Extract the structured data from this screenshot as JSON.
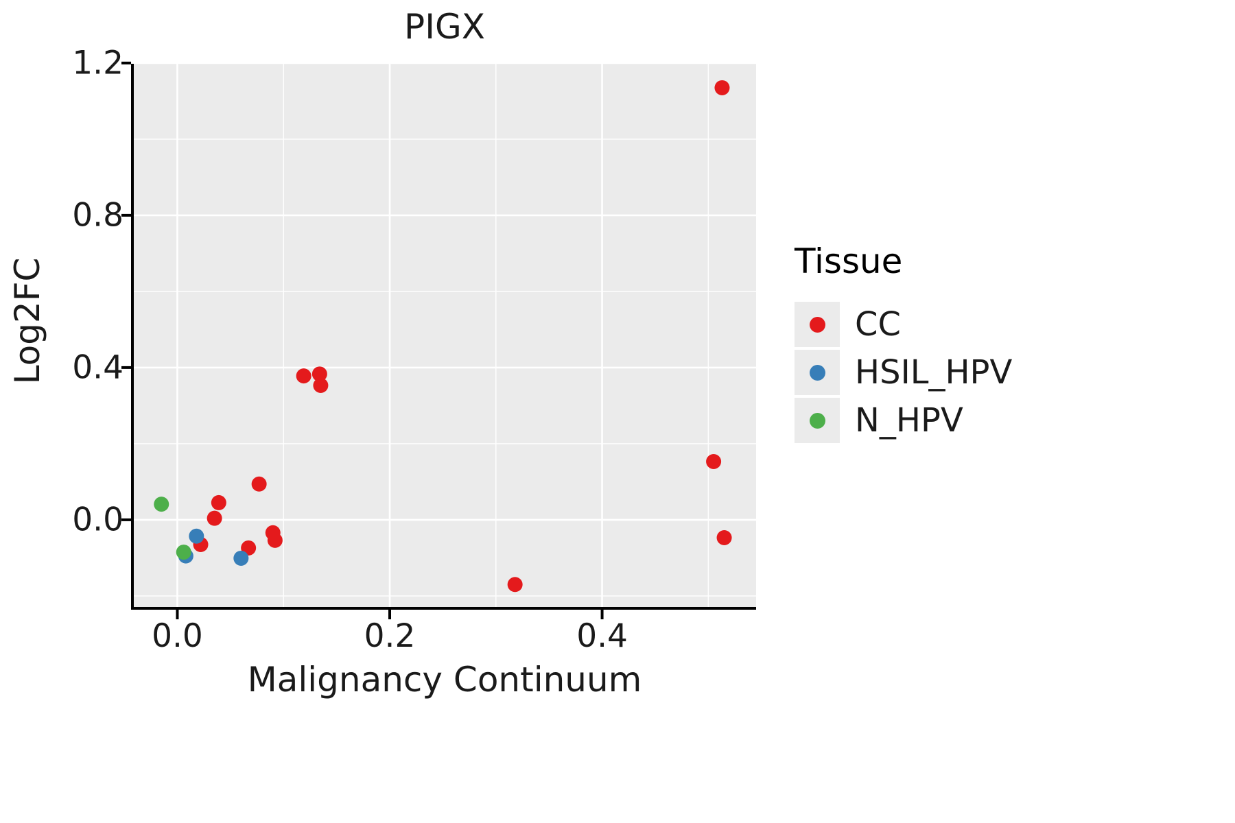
{
  "chart_data": {
    "type": "scatter",
    "title": "PIGX",
    "xlabel": "Malignancy Continuum",
    "ylabel": "Log2FC",
    "xlim": [
      -0.041,
      0.545
    ],
    "ylim": [
      -0.229,
      1.198
    ],
    "x_ticks": [
      0.0,
      0.2,
      0.4
    ],
    "x_tick_labels": [
      "0.0",
      "0.2",
      "0.4"
    ],
    "y_ticks": [
      0.0,
      0.4,
      0.8,
      1.2
    ],
    "y_tick_labels": [
      "0.0",
      "0.4",
      "0.8",
      "1.2"
    ],
    "x_minor_gridlines": [
      0.1,
      0.3,
      0.5
    ],
    "y_minor_gridlines": [
      -0.2,
      0.2,
      0.6,
      1.0
    ],
    "grid": true,
    "panel_background": "#EBEBEB",
    "grid_color": "#FFFFFF",
    "axis_color": "#000000",
    "legend_title": "Tissue",
    "legend_position": "right",
    "point_radius": 11,
    "series": [
      {
        "name": "CC",
        "color": "#E41A1C",
        "points": [
          [
            0.513,
            1.135
          ],
          [
            0.119,
            0.378
          ],
          [
            0.134,
            0.383
          ],
          [
            0.135,
            0.353
          ],
          [
            0.505,
            0.153
          ],
          [
            0.077,
            0.094
          ],
          [
            0.039,
            0.045
          ],
          [
            0.035,
            0.004
          ],
          [
            0.022,
            -0.065
          ],
          [
            0.09,
            -0.034
          ],
          [
            0.092,
            -0.054
          ],
          [
            0.067,
            -0.074
          ],
          [
            0.515,
            -0.047
          ],
          [
            0.318,
            -0.17
          ]
        ]
      },
      {
        "name": "HSIL_HPV",
        "color": "#377EB8",
        "points": [
          [
            0.018,
            -0.043
          ],
          [
            0.008,
            -0.095
          ],
          [
            0.06,
            -0.101
          ]
        ]
      },
      {
        "name": "N_HPV",
        "color": "#4DAF4A",
        "points": [
          [
            -0.015,
            0.041
          ],
          [
            0.006,
            -0.085
          ]
        ]
      }
    ]
  }
}
